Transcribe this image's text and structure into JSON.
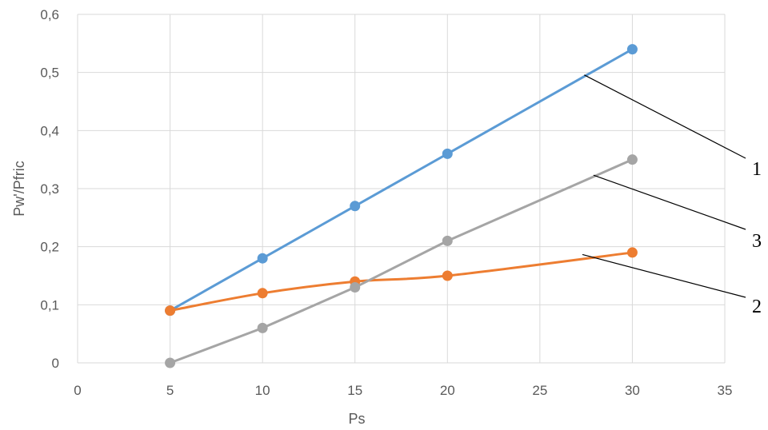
{
  "chart_data": {
    "type": "line",
    "title": "",
    "xlabel": "Ps",
    "ylabel": "Pw'/Pfric",
    "xlim": [
      0,
      35
    ],
    "ylim": [
      0,
      0.6
    ],
    "x_ticks": [
      0,
      5,
      10,
      15,
      20,
      25,
      30,
      35
    ],
    "x_tick_labels": [
      "0",
      "5",
      "10",
      "15",
      "20",
      "25",
      "30",
      "35"
    ],
    "y_ticks": [
      0,
      0.1,
      0.2,
      0.3,
      0.4,
      0.5,
      0.6
    ],
    "y_tick_labels": [
      "0",
      "0,1",
      "0,2",
      "0,3",
      "0,4",
      "0,5",
      "0,6"
    ],
    "grid": true,
    "legend": "none",
    "x": [
      5,
      10,
      15,
      20,
      30
    ],
    "series": [
      {
        "label": "1",
        "color": "#5b9bd5",
        "smooth": false,
        "values": [
          0.09,
          0.18,
          0.27,
          0.36,
          0.54
        ]
      },
      {
        "label": "2",
        "color": "#ed7d31",
        "smooth": true,
        "values": [
          0.09,
          0.12,
          0.14,
          0.15,
          0.19
        ]
      },
      {
        "label": "3",
        "color": "#a5a5a5",
        "smooth": false,
        "values": [
          0.0,
          0.06,
          0.13,
          0.21,
          0.35
        ]
      }
    ],
    "annotations": [
      {
        "text": "1",
        "series": 0,
        "point": [
          27.4,
          0.4957
        ]
      },
      {
        "text": "3",
        "series": 2,
        "point": [
          27.9,
          0.3231
        ]
      },
      {
        "text": "2",
        "series": 1,
        "point": [
          27.3,
          0.1865
        ]
      }
    ]
  }
}
